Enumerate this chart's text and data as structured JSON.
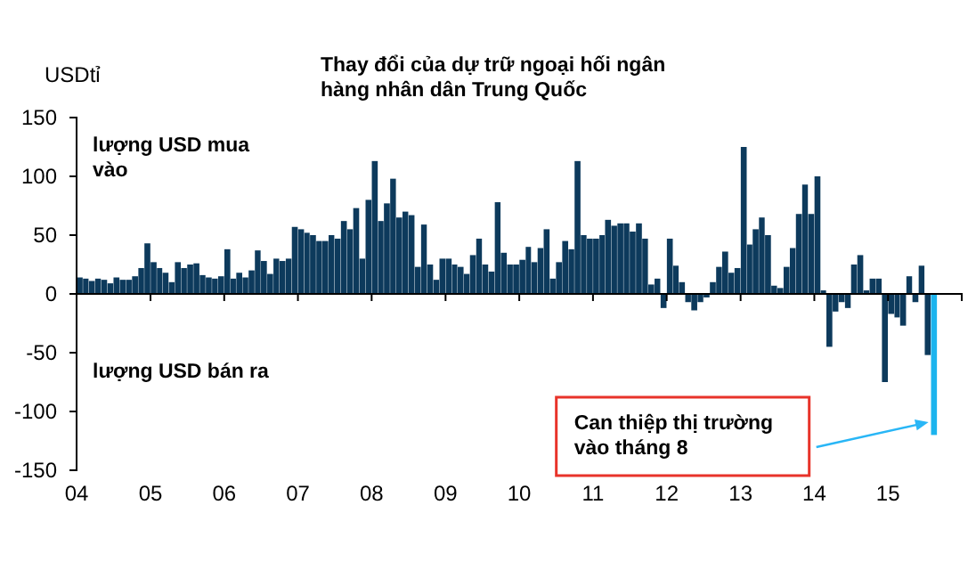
{
  "chart_data": {
    "type": "bar",
    "title": "Thay đổi của dự trữ ngoại hối ngân hàng nhân dân Trung Quốc",
    "ylabel": "USDtỉ",
    "x": [
      "2004-01",
      "2004-02",
      "2004-03",
      "2004-04",
      "2004-05",
      "2004-06",
      "2004-07",
      "2004-08",
      "2004-09",
      "2004-10",
      "2004-11",
      "2004-12",
      "2005-01",
      "2005-02",
      "2005-03",
      "2005-04",
      "2005-05",
      "2005-06",
      "2005-07",
      "2005-08",
      "2005-09",
      "2005-10",
      "2005-11",
      "2005-12",
      "2006-01",
      "2006-02",
      "2006-03",
      "2006-04",
      "2006-05",
      "2006-06",
      "2006-07",
      "2006-08",
      "2006-09",
      "2006-10",
      "2006-11",
      "2006-12",
      "2007-01",
      "2007-02",
      "2007-03",
      "2007-04",
      "2007-05",
      "2007-06",
      "2007-07",
      "2007-08",
      "2007-09",
      "2007-10",
      "2007-11",
      "2007-12",
      "2008-01",
      "2008-02",
      "2008-03",
      "2008-04",
      "2008-05",
      "2008-06",
      "2008-07",
      "2008-08",
      "2008-09",
      "2008-10",
      "2008-11",
      "2008-12",
      "2009-01",
      "2009-02",
      "2009-03",
      "2009-04",
      "2009-05",
      "2009-06",
      "2009-07",
      "2009-08",
      "2009-09",
      "2009-10",
      "2009-11",
      "2009-12",
      "2010-01",
      "2010-02",
      "2010-03",
      "2010-04",
      "2010-05",
      "2010-06",
      "2010-07",
      "2010-08",
      "2010-09",
      "2010-10",
      "2010-11",
      "2010-12",
      "2011-01",
      "2011-02",
      "2011-03",
      "2011-04",
      "2011-05",
      "2011-06",
      "2011-07",
      "2011-08",
      "2011-09",
      "2011-10",
      "2011-11",
      "2011-12",
      "2012-01",
      "2012-02",
      "2012-03",
      "2012-04",
      "2012-05",
      "2012-06",
      "2012-07",
      "2012-08",
      "2012-09",
      "2012-10",
      "2012-11",
      "2012-12",
      "2013-01",
      "2013-02",
      "2013-03",
      "2013-04",
      "2013-05",
      "2013-06",
      "2013-07",
      "2013-08",
      "2013-09",
      "2013-10",
      "2013-11",
      "2013-12",
      "2014-01",
      "2014-02",
      "2014-03",
      "2014-04",
      "2014-05",
      "2014-06",
      "2014-07",
      "2014-08",
      "2014-09",
      "2014-10",
      "2014-11",
      "2014-12",
      "2015-01",
      "2015-02",
      "2015-03",
      "2015-04",
      "2015-05",
      "2015-06",
      "2015-07",
      "2015-08"
    ],
    "values": [
      14,
      13,
      11,
      13,
      12,
      9,
      14,
      12,
      12,
      15,
      22,
      43,
      27,
      22,
      18,
      10,
      27,
      22,
      25,
      26,
      16,
      14,
      13,
      15,
      38,
      13,
      18,
      14,
      20,
      37,
      28,
      17,
      30,
      28,
      30,
      57,
      55,
      52,
      50,
      45,
      45,
      50,
      47,
      62,
      55,
      73,
      30,
      80,
      113,
      62,
      77,
      98,
      65,
      70,
      67,
      23,
      59,
      25,
      12,
      30,
      30,
      25,
      23,
      17,
      33,
      47,
      25,
      19,
      78,
      35,
      25,
      25,
      29,
      40,
      27,
      39,
      55,
      13,
      27,
      45,
      38,
      113,
      50,
      47,
      47,
      50,
      63,
      58,
      60,
      60,
      53,
      60,
      47,
      8,
      13,
      -12,
      47,
      24,
      10,
      -7,
      -14,
      -7,
      -3,
      10,
      23,
      36,
      18,
      22,
      125,
      42,
      55,
      65,
      50,
      7,
      5,
      23,
      39,
      68,
      93,
      68,
      100,
      3,
      -45,
      -15,
      -7,
      -12,
      25,
      33,
      3,
      13,
      13,
      -75,
      -17,
      -20,
      -27,
      15,
      -7,
      24,
      -52,
      -120
    ],
    "colors": [
      "#0d3a5c",
      "#0d3a5c",
      "#0d3a5c",
      "#0d3a5c",
      "#0d3a5c",
      "#0d3a5c",
      "#0d3a5c",
      "#0d3a5c",
      "#0d3a5c",
      "#0d3a5c",
      "#0d3a5c",
      "#0d3a5c",
      "#0d3a5c",
      "#0d3a5c",
      "#0d3a5c",
      "#0d3a5c",
      "#0d3a5c",
      "#0d3a5c",
      "#0d3a5c",
      "#0d3a5c",
      "#0d3a5c",
      "#0d3a5c",
      "#0d3a5c",
      "#0d3a5c",
      "#0d3a5c",
      "#0d3a5c",
      "#0d3a5c",
      "#0d3a5c",
      "#0d3a5c",
      "#0d3a5c",
      "#0d3a5c",
      "#0d3a5c",
      "#0d3a5c",
      "#0d3a5c",
      "#0d3a5c",
      "#0d3a5c",
      "#0d3a5c",
      "#0d3a5c",
      "#0d3a5c",
      "#0d3a5c",
      "#0d3a5c",
      "#0d3a5c",
      "#0d3a5c",
      "#0d3a5c",
      "#0d3a5c",
      "#0d3a5c",
      "#0d3a5c",
      "#0d3a5c",
      "#0d3a5c",
      "#0d3a5c",
      "#0d3a5c",
      "#0d3a5c",
      "#0d3a5c",
      "#0d3a5c",
      "#0d3a5c",
      "#0d3a5c",
      "#0d3a5c",
      "#0d3a5c",
      "#0d3a5c",
      "#0d3a5c",
      "#0d3a5c",
      "#0d3a5c",
      "#0d3a5c",
      "#0d3a5c",
      "#0d3a5c",
      "#0d3a5c",
      "#0d3a5c",
      "#0d3a5c",
      "#0d3a5c",
      "#0d3a5c",
      "#0d3a5c",
      "#0d3a5c",
      "#0d3a5c",
      "#0d3a5c",
      "#0d3a5c",
      "#0d3a5c",
      "#0d3a5c",
      "#0d3a5c",
      "#0d3a5c",
      "#0d3a5c",
      "#0d3a5c",
      "#0d3a5c",
      "#0d3a5c",
      "#0d3a5c",
      "#0d3a5c",
      "#0d3a5c",
      "#0d3a5c",
      "#0d3a5c",
      "#0d3a5c",
      "#0d3a5c",
      "#0d3a5c",
      "#0d3a5c",
      "#0d3a5c",
      "#0d3a5c",
      "#0d3a5c",
      "#0d3a5c",
      "#0d3a5c",
      "#0d3a5c",
      "#0d3a5c",
      "#0d3a5c",
      "#0d3a5c",
      "#0d3a5c",
      "#0d3a5c",
      "#0d3a5c",
      "#0d3a5c",
      "#0d3a5c",
      "#0d3a5c",
      "#0d3a5c",
      "#0d3a5c",
      "#0d3a5c",
      "#0d3a5c",
      "#0d3a5c",
      "#0d3a5c",
      "#0d3a5c",
      "#0d3a5c",
      "#0d3a5c",
      "#0d3a5c",
      "#0d3a5c",
      "#0d3a5c",
      "#0d3a5c",
      "#0d3a5c",
      "#0d3a5c",
      "#0d3a5c",
      "#0d3a5c",
      "#0d3a5c",
      "#0d3a5c",
      "#0d3a5c",
      "#0d3a5c",
      "#0d3a5c",
      "#0d3a5c",
      "#0d3a5c",
      "#0d3a5c",
      "#0d3a5c",
      "#0d3a5c",
      "#0d3a5c",
      "#0d3a5c",
      "#0d3a5c",
      "#0d3a5c",
      "#0d3a5c",
      "#1cb4ee"
    ],
    "xlim": [
      "2004-01",
      "2016-01"
    ],
    "xticks": [
      {
        "value": "2004-01",
        "label": "04"
      },
      {
        "value": "2005-01",
        "label": "05"
      },
      {
        "value": "2006-01",
        "label": "06"
      },
      {
        "value": "2007-01",
        "label": "07"
      },
      {
        "value": "2008-01",
        "label": "08"
      },
      {
        "value": "2009-01",
        "label": "09"
      },
      {
        "value": "2010-01",
        "label": "10"
      },
      {
        "value": "2011-01",
        "label": "11"
      },
      {
        "value": "2012-01",
        "label": "12"
      },
      {
        "value": "2013-01",
        "label": "13"
      },
      {
        "value": "2014-01",
        "label": "14"
      },
      {
        "value": "2015-01",
        "label": "15"
      },
      {
        "value": "2016-01",
        "label": null
      }
    ],
    "ylim": [
      -150,
      150
    ],
    "yticks": [
      -150,
      -100,
      -50,
      0,
      50,
      100,
      150
    ],
    "annotations": [
      "lượng USD mua vào",
      "lượng USD bán ra",
      "Can thiệp thị trường vào tháng 8"
    ]
  }
}
